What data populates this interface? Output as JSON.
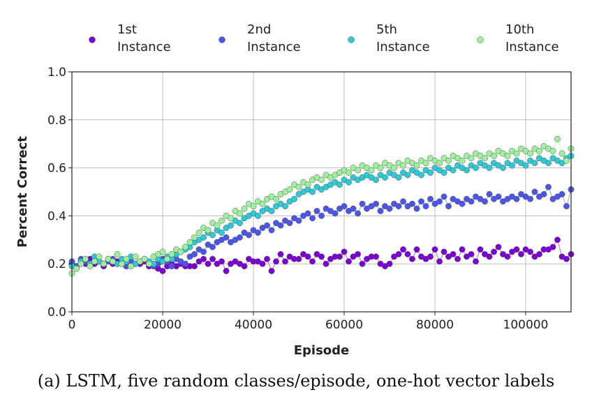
{
  "chart_data": {
    "type": "scatter",
    "xlabel": "Episode",
    "ylabel": "Percent Correct",
    "xlim": [
      0,
      110000
    ],
    "ylim": [
      0.0,
      1.0
    ],
    "x_ticks": [
      "0",
      "20000",
      "40000",
      "60000",
      "80000",
      "100000"
    ],
    "y_ticks": [
      "0.0",
      "0.2",
      "0.4",
      "0.6",
      "0.8",
      "1.0"
    ],
    "grid": true,
    "legend_position": "top",
    "caption": "(a) LSTM, five random classes/episode, one-hot vector labels",
    "series": [
      {
        "name": "1st Instance",
        "color": "#7b00d4",
        "x_start": 0,
        "x_step": 1000,
        "values": [
          0.2,
          0.19,
          0.21,
          0.2,
          0.22,
          0.2,
          0.21,
          0.19,
          0.22,
          0.2,
          0.21,
          0.2,
          0.19,
          0.21,
          0.2,
          0.2,
          0.21,
          0.19,
          0.2,
          0.18,
          0.17,
          0.19,
          0.2,
          0.19,
          0.2,
          0.19,
          0.19,
          0.19,
          0.21,
          0.22,
          0.2,
          0.22,
          0.2,
          0.21,
          0.17,
          0.2,
          0.21,
          0.2,
          0.19,
          0.22,
          0.21,
          0.21,
          0.2,
          0.22,
          0.17,
          0.21,
          0.24,
          0.21,
          0.23,
          0.22,
          0.22,
          0.24,
          0.23,
          0.21,
          0.24,
          0.23,
          0.2,
          0.22,
          0.23,
          0.23,
          0.25,
          0.21,
          0.23,
          0.24,
          0.2,
          0.22,
          0.23,
          0.23,
          0.2,
          0.19,
          0.2,
          0.23,
          0.24,
          0.26,
          0.24,
          0.22,
          0.26,
          0.23,
          0.22,
          0.23,
          0.26,
          0.21,
          0.25,
          0.23,
          0.24,
          0.22,
          0.26,
          0.23,
          0.24,
          0.21,
          0.26,
          0.24,
          0.23,
          0.25,
          0.27,
          0.24,
          0.23,
          0.25,
          0.26,
          0.24,
          0.26,
          0.25,
          0.23,
          0.24,
          0.26,
          0.26,
          0.27,
          0.3,
          0.23,
          0.22,
          0.24
        ]
      },
      {
        "name": "2nd Instance",
        "color": "#4b55e8",
        "x_start": 0,
        "x_step": 1000,
        "values": [
          0.21,
          0.19,
          0.22,
          0.21,
          0.2,
          0.22,
          0.21,
          0.2,
          0.21,
          0.22,
          0.2,
          0.21,
          0.19,
          0.21,
          0.2,
          0.21,
          0.22,
          0.2,
          0.19,
          0.2,
          0.22,
          0.21,
          0.19,
          0.22,
          0.21,
          0.2,
          0.23,
          0.24,
          0.26,
          0.25,
          0.28,
          0.27,
          0.29,
          0.3,
          0.31,
          0.29,
          0.3,
          0.31,
          0.33,
          0.32,
          0.34,
          0.33,
          0.35,
          0.36,
          0.34,
          0.37,
          0.36,
          0.38,
          0.37,
          0.39,
          0.38,
          0.4,
          0.41,
          0.39,
          0.42,
          0.4,
          0.43,
          0.42,
          0.41,
          0.43,
          0.44,
          0.42,
          0.43,
          0.41,
          0.45,
          0.43,
          0.44,
          0.45,
          0.42,
          0.44,
          0.43,
          0.45,
          0.44,
          0.46,
          0.44,
          0.45,
          0.43,
          0.46,
          0.44,
          0.47,
          0.45,
          0.46,
          0.48,
          0.44,
          0.47,
          0.46,
          0.45,
          0.47,
          0.46,
          0.48,
          0.47,
          0.46,
          0.49,
          0.47,
          0.48,
          0.46,
          0.47,
          0.48,
          0.47,
          0.49,
          0.48,
          0.47,
          0.5,
          0.48,
          0.49,
          0.52,
          0.47,
          0.48,
          0.49,
          0.44,
          0.51
        ]
      },
      {
        "name": "5th Instance",
        "color": "#2ec9d6",
        "x_start": 0,
        "x_step": 1000,
        "values": [
          0.19,
          0.18,
          0.21,
          0.22,
          0.2,
          0.23,
          0.21,
          0.2,
          0.22,
          0.21,
          0.2,
          0.22,
          0.21,
          0.23,
          0.2,
          0.21,
          0.22,
          0.21,
          0.2,
          0.22,
          0.21,
          0.23,
          0.22,
          0.24,
          0.25,
          0.26,
          0.27,
          0.29,
          0.3,
          0.31,
          0.33,
          0.32,
          0.34,
          0.33,
          0.35,
          0.36,
          0.38,
          0.37,
          0.39,
          0.4,
          0.41,
          0.4,
          0.42,
          0.43,
          0.42,
          0.44,
          0.45,
          0.44,
          0.46,
          0.47,
          0.49,
          0.5,
          0.51,
          0.5,
          0.52,
          0.51,
          0.52,
          0.53,
          0.54,
          0.53,
          0.55,
          0.54,
          0.56,
          0.55,
          0.56,
          0.57,
          0.56,
          0.55,
          0.57,
          0.56,
          0.58,
          0.57,
          0.56,
          0.58,
          0.57,
          0.59,
          0.58,
          0.57,
          0.59,
          0.58,
          0.6,
          0.59,
          0.58,
          0.6,
          0.59,
          0.61,
          0.6,
          0.59,
          0.61,
          0.6,
          0.62,
          0.61,
          0.6,
          0.62,
          0.61,
          0.6,
          0.62,
          0.61,
          0.63,
          0.62,
          0.61,
          0.63,
          0.62,
          0.64,
          0.63,
          0.62,
          0.64,
          0.63,
          0.62,
          0.64,
          0.65
        ]
      },
      {
        "name": "10th Instance",
        "color": "#9ef09e",
        "x_start": 0,
        "x_step": 1000,
        "values": [
          0.16,
          0.18,
          0.2,
          0.22,
          0.19,
          0.21,
          0.23,
          0.2,
          0.22,
          0.21,
          0.24,
          0.2,
          0.22,
          0.19,
          0.23,
          0.21,
          0.22,
          0.2,
          0.23,
          0.24,
          0.25,
          0.22,
          0.24,
          0.26,
          0.25,
          0.27,
          0.29,
          0.31,
          0.33,
          0.35,
          0.34,
          0.37,
          0.36,
          0.38,
          0.4,
          0.39,
          0.42,
          0.41,
          0.43,
          0.45,
          0.44,
          0.46,
          0.45,
          0.47,
          0.48,
          0.47,
          0.49,
          0.5,
          0.51,
          0.53,
          0.52,
          0.54,
          0.53,
          0.55,
          0.56,
          0.55,
          0.57,
          0.56,
          0.57,
          0.58,
          0.59,
          0.58,
          0.6,
          0.59,
          0.61,
          0.6,
          0.59,
          0.61,
          0.6,
          0.62,
          0.61,
          0.6,
          0.62,
          0.61,
          0.63,
          0.62,
          0.61,
          0.63,
          0.62,
          0.64,
          0.63,
          0.62,
          0.64,
          0.63,
          0.65,
          0.64,
          0.63,
          0.65,
          0.64,
          0.66,
          0.65,
          0.64,
          0.66,
          0.65,
          0.67,
          0.66,
          0.65,
          0.67,
          0.66,
          0.68,
          0.67,
          0.66,
          0.68,
          0.67,
          0.69,
          0.68,
          0.67,
          0.72,
          0.66,
          0.63,
          0.68
        ]
      }
    ]
  }
}
